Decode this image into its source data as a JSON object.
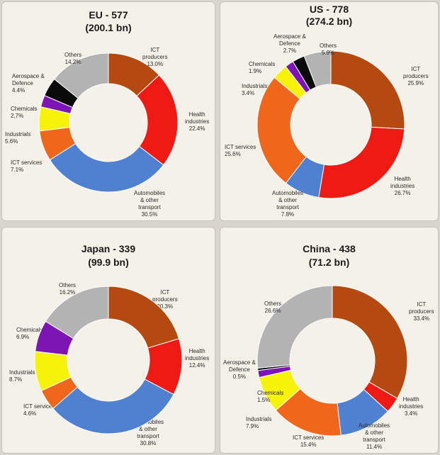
{
  "chart_data": [
    {
      "type": "pie",
      "title": "EU - 577",
      "subtitle": "(200.1 bn)",
      "slices": [
        {
          "name": "ICT producers",
          "label": "ICT\nproducers",
          "value": 13.0,
          "value_label": "13.0%",
          "color": "#b44a0f"
        },
        {
          "name": "Health industries",
          "label": "Health\nindustries",
          "value": 22.4,
          "value_label": "22.4%",
          "color": "#f01a14"
        },
        {
          "name": "Automobiles & other transport",
          "label": "Automobiles\n& other\ntransport",
          "value": 30.5,
          "value_label": "30.5%",
          "color": "#4f81d0"
        },
        {
          "name": "ICT services",
          "label": "ICT services",
          "value": 7.1,
          "value_label": "7.1%",
          "color": "#f0661b"
        },
        {
          "name": "Industrials",
          "label": "Industrials",
          "value": 5.6,
          "value_label": "5.6%",
          "color": "#f7f20a"
        },
        {
          "name": "Chemicals",
          "label": "Chemicals",
          "value": 2.7,
          "value_label": "2.7%",
          "color": "#7d14b4"
        },
        {
          "name": "Aerospace & Defence",
          "label": "Aerospace &\nDefence",
          "value": 4.4,
          "value_label": "4.4%",
          "color": "#0a0a0a"
        },
        {
          "name": "Others",
          "label": "Others",
          "value": 14.2,
          "value_label": "14.2%",
          "color": "#b3b3b3"
        }
      ]
    },
    {
      "type": "pie",
      "title": "US  - 778",
      "subtitle": "(274.2 bn)",
      "slices": [
        {
          "name": "ICT producers",
          "label": "ICT\nproducers",
          "value": 25.9,
          "value_label": "25.9%",
          "color": "#b44a0f"
        },
        {
          "name": "Health industries",
          "label": "Health\nindustries",
          "value": 26.7,
          "value_label": "26.7%",
          "color": "#f01a14"
        },
        {
          "name": "Automobiles & other transport",
          "label": "Automobiles\n& other\ntransport",
          "value": 7.8,
          "value_label": "7.8%",
          "color": "#4f81d0"
        },
        {
          "name": "ICT services",
          "label": "ICT services",
          "value": 25.6,
          "value_label": "25.6%",
          "color": "#f0661b"
        },
        {
          "name": "Industrials",
          "label": "Industrials",
          "value": 3.4,
          "value_label": "3.4%",
          "color": "#f7f20a"
        },
        {
          "name": "Chemicals",
          "label": "Chemicals",
          "value": 1.9,
          "value_label": "1.9%",
          "color": "#7d14b4"
        },
        {
          "name": "Aerospace & Defence",
          "label": "Aerospace &\nDefence",
          "value": 2.7,
          "value_label": "2.7%",
          "color": "#0a0a0a"
        },
        {
          "name": "Others",
          "label": "Others",
          "value": 5.9,
          "value_label": "5.9%",
          "color": "#b3b3b3"
        }
      ]
    },
    {
      "type": "pie",
      "title": "Japan - 339",
      "subtitle": "(99.9 bn)",
      "slices": [
        {
          "name": "ICT producers",
          "label": "ICT\nproducers",
          "value": 20.3,
          "value_label": "20.3%",
          "color": "#b44a0f"
        },
        {
          "name": "Health industries",
          "label": "Health\nindustries",
          "value": 12.4,
          "value_label": "12.4%",
          "color": "#f01a14"
        },
        {
          "name": "Automobiles & other transport",
          "label": "Automobiles\n& other\ntransport",
          "value": 30.8,
          "value_label": "30.8%",
          "color": "#4f81d0"
        },
        {
          "name": "ICT services",
          "label": "ICT services",
          "value": 4.6,
          "value_label": "4.6%",
          "color": "#f0661b"
        },
        {
          "name": "Industrials",
          "label": "Industrials",
          "value": 8.7,
          "value_label": "8.7%",
          "color": "#f7f20a"
        },
        {
          "name": "Chemicals",
          "label": "Chemicals",
          "value": 6.9,
          "value_label": "6.9%",
          "color": "#7d14b4"
        },
        {
          "name": "Others",
          "label": "Others",
          "value": 16.2,
          "value_label": "16.2%",
          "color": "#b3b3b3"
        }
      ]
    },
    {
      "type": "pie",
      "title": "China  - 438",
      "subtitle": "(71.2 bn)",
      "slices": [
        {
          "name": "ICT producers",
          "label": "ICT\nproducers",
          "value": 33.4,
          "value_label": "33.4%",
          "color": "#b44a0f"
        },
        {
          "name": "Health industries",
          "label": "Health\nindustries",
          "value": 3.4,
          "value_label": "3.4%",
          "color": "#f01a14"
        },
        {
          "name": "Automobiles & other transport",
          "label": "Automobiles\n& other\ntransport",
          "value": 11.4,
          "value_label": "11.4%",
          "color": "#4f81d0"
        },
        {
          "name": "ICT services",
          "label": "ICT services",
          "value": 15.4,
          "value_label": "15.4%",
          "color": "#f0661b"
        },
        {
          "name": "Industrials",
          "label": "Industrials",
          "value": 7.9,
          "value_label": "7.9%",
          "color": "#f7f20a"
        },
        {
          "name": "Chemicals",
          "label": "Chemicals",
          "value": 1.5,
          "value_label": "1.5%",
          "color": "#7d14b4"
        },
        {
          "name": "Aerospace & Defence",
          "label": "Aerospace &\nDefence",
          "value": 0.5,
          "value_label": "0.5%",
          "color": "#0a0a0a"
        },
        {
          "name": "Others",
          "label": "Others",
          "value": 26.6,
          "value_label": "26.6%",
          "color": "#b3b3b3"
        }
      ]
    }
  ]
}
